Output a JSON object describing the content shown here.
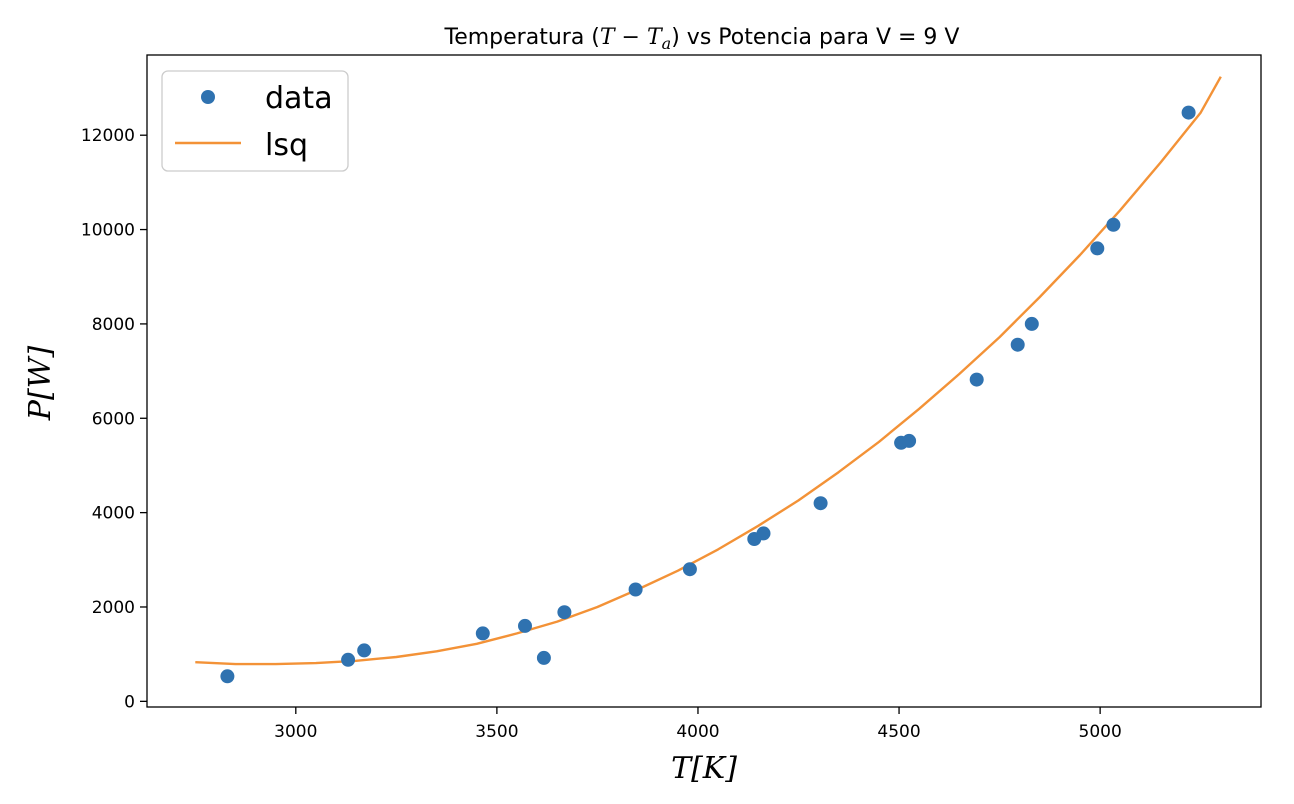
{
  "chart_data": {
    "type": "scatter",
    "title": {
      "prefix": "Temperatura (",
      "math": "T − T",
      "math_sub": "a",
      "suffix": ") vs Potencia para V = 9 V"
    },
    "xlabel": "T[K]",
    "ylabel": "P[W]",
    "xlim": [
      2630,
      5400
    ],
    "ylim": [
      -120,
      13700
    ],
    "x_ticks": [
      3000,
      3500,
      4000,
      4500,
      5000
    ],
    "y_ticks": [
      0,
      2000,
      4000,
      6000,
      8000,
      10000,
      12000
    ],
    "grid": false,
    "legend_position": "upper-left",
    "series": [
      {
        "name": "data",
        "kind": "points",
        "color": "#2f72b0",
        "x": [
          2830,
          3130,
          3170,
          3465,
          3570,
          3617,
          3668,
          3845,
          3980,
          4140,
          4163,
          4305,
          4505,
          4525,
          4693,
          4795,
          4830,
          4993,
          5033,
          5220
        ],
        "y": [
          530,
          880,
          1080,
          1440,
          1600,
          920,
          1890,
          2370,
          2800,
          3440,
          3560,
          4200,
          5480,
          5520,
          6820,
          7560,
          8000,
          9600,
          10100,
          12480
        ]
      },
      {
        "name": "lsq",
        "kind": "line",
        "color": "#f39237",
        "x": [
          2750,
          2850,
          2950,
          3050,
          3150,
          3250,
          3350,
          3450,
          3550,
          3650,
          3750,
          3850,
          3950,
          4050,
          4150,
          4250,
          4350,
          4450,
          4550,
          4650,
          4750,
          4850,
          4950,
          5050,
          5150,
          5250,
          5300
        ],
        "y": [
          830,
          790,
          790,
          810,
          860,
          940,
          1060,
          1220,
          1440,
          1690,
          2000,
          2370,
          2770,
          3220,
          3720,
          4260,
          4860,
          5500,
          6200,
          6940,
          7720,
          8570,
          9460,
          10410,
          11420,
          12480,
          13240
        ]
      }
    ]
  }
}
